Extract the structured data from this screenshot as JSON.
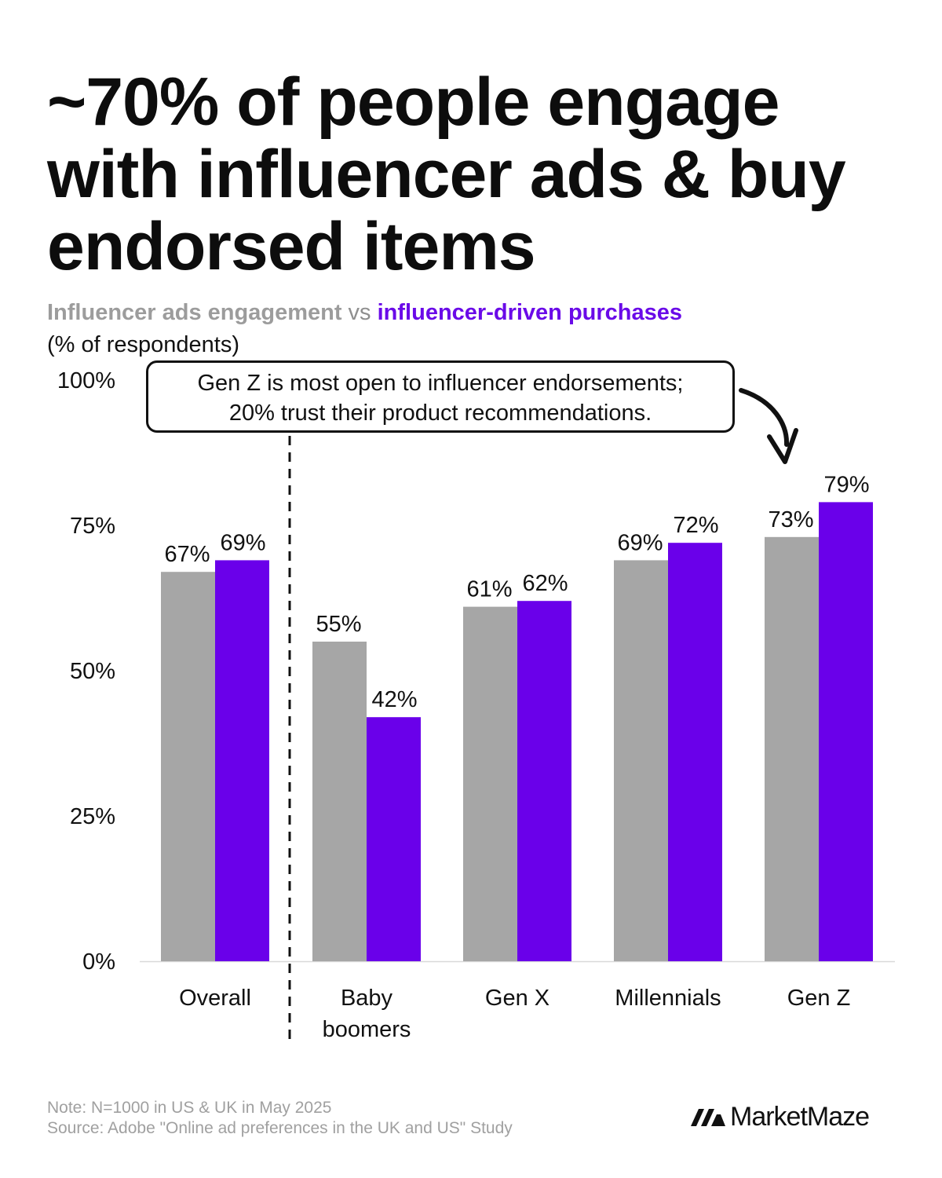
{
  "title": "~70% of people engage with influencer ads & buy endorsed items",
  "subtitle": {
    "part1": "Influencer ads engagement",
    "vs": " vs ",
    "part2": "influencer-driven purchases",
    "units": "(% of respondents)"
  },
  "callout": {
    "line1": "Gen Z is most open to influencer endorsements;",
    "line2": "20% trust their product recommendations."
  },
  "note": {
    "line1": "Note: N=1000 in US & UK in May 2025",
    "line2": "Source: Adobe \"Online ad preferences in the UK and US\" Study"
  },
  "brand": {
    "name": "MarketMaze"
  },
  "colors": {
    "engagement": "#a6a6a6",
    "purchases": "#6a00ea",
    "text": "#111111",
    "axis": "#d9d9d9"
  },
  "chart_data": {
    "type": "bar",
    "categories": [
      "Overall",
      "Baby boomers",
      "Gen X",
      "Millennials",
      "Gen Z"
    ],
    "category_lines": [
      [
        "Overall"
      ],
      [
        "Baby",
        "boomers"
      ],
      [
        "Gen X"
      ],
      [
        "Millennials"
      ],
      [
        "Gen Z"
      ]
    ],
    "series": [
      {
        "name": "Influencer ads engagement",
        "values": [
          67,
          55,
          61,
          69,
          73
        ],
        "labels": [
          "67%",
          "55%",
          "61%",
          "69%",
          "73%"
        ]
      },
      {
        "name": "influencer-driven purchases",
        "values": [
          69,
          42,
          62,
          72,
          79
        ],
        "labels": [
          "69%",
          "42%",
          "62%",
          "72%",
          "79%"
        ]
      }
    ],
    "ylim": [
      0,
      100
    ],
    "yticks": [
      0,
      25,
      50,
      75,
      100
    ],
    "ytick_labels": [
      "0%",
      "25%",
      "50%",
      "75%",
      "100%"
    ],
    "grid": false,
    "separator_after": "Overall",
    "annotation_target": "Gen Z"
  }
}
